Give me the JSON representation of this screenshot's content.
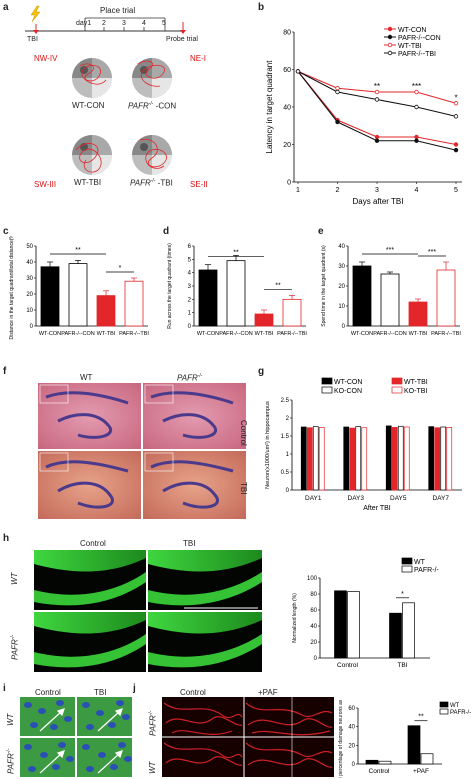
{
  "panels": {
    "a": "a",
    "b": "b",
    "c": "c",
    "d": "d",
    "e": "e",
    "f": "f",
    "g": "g",
    "h": "h",
    "i": "i",
    "j": "j"
  },
  "a": {
    "timeline": {
      "place_trial": "Place trial",
      "tbi": "TBI",
      "days": [
        "day1",
        "2",
        "3",
        "4",
        "5"
      ],
      "probe": "Probe trial"
    },
    "quadrants": {
      "nw": "NW-IV",
      "ne": "NE-I",
      "sw": "SW-III",
      "se": "SE-II"
    },
    "labels": {
      "wt_con": "WT-CON",
      "pafr_con_italic": "PAFR",
      "pafr_con_sup": "-/-",
      "pafr_con_rest": " -CON",
      "wt_tbi": "WT-TBI",
      "pafr_tbi_italic": "PAFR",
      "pafr_tbi_sup": "-/-",
      "pafr_tbi_rest": " -TBI"
    }
  },
  "colors": {
    "red": "#e3262a",
    "black": "#111111",
    "green": "#2fd22f"
  },
  "chart_data": [
    {
      "id": "b",
      "type": "line",
      "xlabel": "Days after TBI",
      "ylabel": "Latency in target quadrant",
      "x": [
        1,
        2,
        3,
        4,
        5
      ],
      "xlim": [
        1,
        5
      ],
      "ylim": [
        0,
        80
      ],
      "yticks": [
        0,
        20,
        40,
        60,
        80
      ],
      "legend": [
        "WT-CON",
        "PAFR-/--CON",
        "WT-TBI",
        "PAFR-/--TBI"
      ],
      "legend_position": "top-right",
      "series": [
        {
          "name": "WT-CON",
          "color": "#e3262a",
          "filled": true,
          "values": [
            59,
            33,
            24,
            24,
            20
          ]
        },
        {
          "name": "PAFR-/--CON",
          "color": "#111111",
          "filled": true,
          "values": [
            59,
            32,
            22,
            22,
            17
          ]
        },
        {
          "name": "WT-TBI",
          "color": "#e3262a",
          "filled": false,
          "values": [
            59,
            50,
            48,
            48,
            42
          ]
        },
        {
          "name": "PAFR-/--TBI",
          "color": "#111111",
          "filled": false,
          "values": [
            59,
            48,
            44,
            40,
            35
          ]
        }
      ],
      "significance": [
        {
          "x": 3,
          "label": "**"
        },
        {
          "x": 4,
          "label": "***"
        },
        {
          "x": 5,
          "label": "*"
        }
      ]
    },
    {
      "id": "c",
      "type": "bar",
      "ylabel": "Distance in the target quadrant/total distance(%)",
      "ylim": [
        0,
        50
      ],
      "yticks": [
        0,
        10,
        20,
        30,
        40,
        50
      ],
      "categories": [
        "WT-CON",
        "PAFR-/--CON",
        "WT-TBI",
        "PAFR-/--TBI"
      ],
      "values": [
        37,
        39,
        19,
        28
      ],
      "errors": [
        3,
        2,
        3,
        2
      ],
      "brackets": [
        {
          "from": 0,
          "to": 2,
          "label": "**"
        },
        {
          "from": 2,
          "to": 3,
          "label": "*"
        }
      ]
    },
    {
      "id": "d",
      "type": "bar",
      "ylabel": "Run across the target quadrant (times)",
      "ylim": [
        0,
        6
      ],
      "yticks": [
        0,
        1,
        2,
        3,
        4,
        5,
        6
      ],
      "categories": [
        "WT-CON",
        "PAFR-/--CON",
        "WT-TBI",
        "PAFR-/--TBI"
      ],
      "values": [
        4.2,
        4.9,
        0.9,
        2.0
      ],
      "errors": [
        0.4,
        0.4,
        0.3,
        0.3
      ],
      "brackets": [
        {
          "from": 0,
          "to": 2,
          "label": "**"
        },
        {
          "from": 2,
          "to": 3,
          "label": "**"
        }
      ]
    },
    {
      "id": "e",
      "type": "bar",
      "ylabel": "Spend time in the target quadrant (s)",
      "ylim": [
        0,
        40
      ],
      "yticks": [
        0,
        10,
        20,
        30,
        40
      ],
      "categories": [
        "WT-CON",
        "PAFR-/--CON",
        "WT-TBI",
        "PAFR-/--TBI"
      ],
      "values": [
        30,
        26,
        12,
        28
      ],
      "errors": [
        2,
        1,
        1.5,
        4
      ],
      "brackets": [
        {
          "from": 0,
          "to": 2,
          "label": "***"
        },
        {
          "from": 2,
          "to": 3,
          "label": "***"
        }
      ]
    },
    {
      "id": "g",
      "type": "bar",
      "xlabel": "After TBI",
      "ylabel": "Neuron(x1000/um²) in hippocampus",
      "ylim": [
        0,
        2.5
      ],
      "yticks": [
        0.0,
        0.5,
        1.0,
        1.5,
        2.0,
        2.5
      ],
      "categories": [
        "DAY1",
        "DAY3",
        "DAY5",
        "DAY7"
      ],
      "legend": [
        "WT-CON",
        "WT-TBI",
        "KO-CON",
        "KO-TBI"
      ],
      "series": [
        {
          "name": "WT-CON",
          "values": [
            1.75,
            1.75,
            1.78,
            1.76
          ]
        },
        {
          "name": "WT-TBI",
          "values": [
            1.73,
            1.72,
            1.74,
            1.73
          ]
        },
        {
          "name": "KO-CON",
          "values": [
            1.76,
            1.76,
            1.77,
            1.75
          ]
        },
        {
          "name": "KO-TBI",
          "values": [
            1.74,
            1.73,
            1.75,
            1.74
          ]
        }
      ]
    },
    {
      "id": "h",
      "type": "bar",
      "ylabel": "Normalized length (%)",
      "ylim": [
        0,
        100
      ],
      "yticks": [
        0,
        20,
        40,
        60,
        80,
        100
      ],
      "categories": [
        "Control",
        "TBI"
      ],
      "legend": [
        "WT",
        "PAFR-/-"
      ],
      "series": [
        {
          "name": "WT",
          "values": [
            84,
            56
          ]
        },
        {
          "name": "PAFR-/-",
          "values": [
            83,
            69
          ]
        }
      ],
      "brackets": [
        {
          "label": "*"
        }
      ]
    },
    {
      "id": "j",
      "type": "bar",
      "ylabel": "The percentage of damage neurons axon(%)",
      "ylim": [
        0,
        60
      ],
      "yticks": [
        0,
        20,
        40,
        60
      ],
      "categories": [
        "Control",
        "+PAF"
      ],
      "legend": [
        "WT",
        "PAFR-/-"
      ],
      "series": [
        {
          "name": "WT",
          "values": [
            4,
            41
          ]
        },
        {
          "name": "PAFR-/-",
          "values": [
            3,
            11
          ]
        }
      ],
      "brackets": [
        {
          "label": "**"
        }
      ]
    }
  ],
  "f": {
    "wt": "WT",
    "pafr_italic": "PAFR",
    "pafr_sup": "-/-",
    "control": "Control",
    "tbi": "TBI"
  },
  "h_img": {
    "control": "Control",
    "tbi": "TBI",
    "wt": "WT",
    "pafr_italic": "PAFR",
    "pafr_sup": "-/-"
  },
  "i_img": {
    "control": "Control",
    "tbi": "TBI",
    "wt": "WT",
    "pafr_italic": "PAFR",
    "pafr_sup": "-/-"
  },
  "j_img": {
    "control": "Control",
    "paf": "+PAF",
    "wt": "WT",
    "pafr_italic": "PAFR",
    "pafr_sup": "-/-"
  }
}
